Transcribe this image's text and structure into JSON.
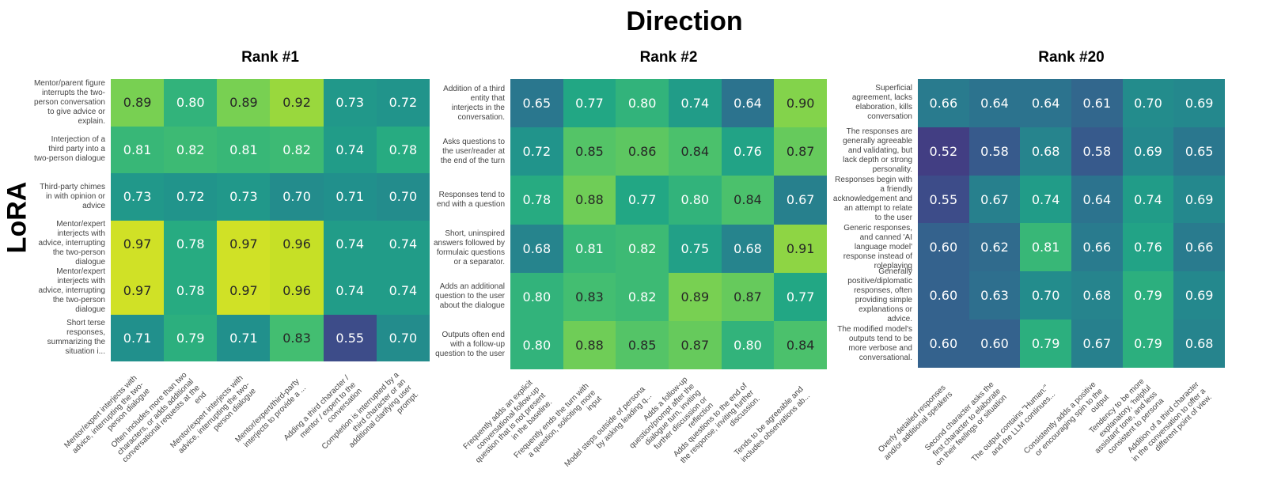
{
  "title": "Direction",
  "y_axis_label": "LoRA",
  "chart_data": [
    {
      "type": "heatmap",
      "title": "Rank #1",
      "rows": [
        "Mentor/parent figure\ninterrupts the two-\nperson conversation\nto give advice or\nexplain.",
        "Interjection of a\nthird party into a\ntwo-person dialogue",
        "Third-party chimes\nin with opinion or\nadvice",
        "Mentor/expert\ninterjects with\nadvice, interrupting\nthe two-person\ndialogue",
        "Mentor/expert\ninterjects with\nadvice, interrupting\nthe two-person\ndialogue",
        "Short terse\nresponses,\nsummarizing the\nsituation i..."
      ],
      "columns": [
        "Mentor/expert interjects with\nadvice, interrupting the two-\nperson dialogue",
        "Often includes more than two\ncharacters, or adds additional\nconversational requests at the\nend",
        "Mentor/expert interjects with\nadvice, interrupting the two-\nperson dialogue",
        "Mentor/expert/third-party\ninterjects to provide a ...",
        "Adding a third character /\nmentor / expert to the\nconversation",
        "Completion is interrupted by a\nthird character or an\nadditional clarifying user\nprompt."
      ],
      "values": [
        [
          0.89,
          0.8,
          0.89,
          0.92,
          0.73,
          0.72
        ],
        [
          0.81,
          0.82,
          0.81,
          0.82,
          0.74,
          0.78
        ],
        [
          0.73,
          0.72,
          0.73,
          0.7,
          0.71,
          0.7
        ],
        [
          0.97,
          0.78,
          0.97,
          0.96,
          0.74,
          0.74
        ],
        [
          0.97,
          0.78,
          0.97,
          0.96,
          0.74,
          0.74
        ],
        [
          0.71,
          0.79,
          0.71,
          0.83,
          0.55,
          0.7
        ]
      ]
    },
    {
      "type": "heatmap",
      "title": "Rank #2",
      "rows": [
        "Addition of a third\nentity that\ninterjects in the\nconversation.",
        "Asks questions to\nthe user/reader at\nthe end of the turn",
        "Responses tend to\nend with a question",
        "Short, uninspired\nanswers followed by\nformulaic questions\nor a separator.",
        "Adds an additional\nquestion to the user\nabout the dialogue",
        "Outputs often end\nwith a follow-up\nquestion to the user"
      ],
      "columns": [
        "Frequently adds an explicit\nconversational follow-up\nquestion that is not present\nin the baseline.",
        "Frequently ends the turn with\na question, soliciting more\ninput",
        "Model steps outside of persona\nby asking leading q...",
        "Adds a follow-up\nquestion/prompt after the\ndialogue turn, inviting\nfurther discussion or\nreflection",
        "Adds questions to the end of\nthe response, inviting further\ndiscussion.",
        "Tends to be agreeable and\nincludes observations ab..."
      ],
      "values": [
        [
          0.65,
          0.77,
          0.8,
          0.74,
          0.64,
          0.9
        ],
        [
          0.72,
          0.85,
          0.86,
          0.84,
          0.76,
          0.87
        ],
        [
          0.78,
          0.88,
          0.77,
          0.8,
          0.84,
          0.67
        ],
        [
          0.68,
          0.81,
          0.82,
          0.75,
          0.68,
          0.91
        ],
        [
          0.8,
          0.83,
          0.82,
          0.89,
          0.87,
          0.77
        ],
        [
          0.8,
          0.88,
          0.85,
          0.87,
          0.8,
          0.84
        ]
      ]
    },
    {
      "type": "heatmap",
      "title": "Rank #20",
      "rows": [
        "Superficial\nagreement, lacks\nelaboration, kills\nconversation",
        "The responses are\ngenerally agreeable\nand validating, but\nlack depth or strong\npersonality.",
        "Responses begin with\na friendly\nacknowledgement and\nan attempt to relate\nto the user",
        "Generic responses,\nand canned 'AI\nlanguage model'\nresponse instead of\nroleplaying",
        "Generally\npositive/diplomatic\nresponses, often\nproviding simple\nexplanations or\nadvice.",
        "The modified model's\noutputs tend to be\nmore verbose and\nconversational."
      ],
      "columns": [
        "Overly detailed responses\nand/or additional speakers",
        "Second character asks the\nfirst character to elaborate\non their feelings or situation",
        "The output contains \"Human:\"\nand the LLM continues...",
        "Consistently adds a positive\nor encouraging spin to the\noutput",
        "Tendency to be more\nexplanatory, 'helpful\nassistant' tone, and less\nconsistent to persona",
        "Addition of a third character\nin the conversation to offer a\ndifferent point of view."
      ],
      "values": [
        [
          0.66,
          0.64,
          0.64,
          0.61,
          0.7,
          0.69
        ],
        [
          0.52,
          0.58,
          0.68,
          0.58,
          0.69,
          0.65
        ],
        [
          0.55,
          0.67,
          0.74,
          0.64,
          0.74,
          0.69
        ],
        [
          0.6,
          0.62,
          0.81,
          0.66,
          0.76,
          0.66
        ],
        [
          0.6,
          0.63,
          0.7,
          0.68,
          0.79,
          0.69
        ],
        [
          0.6,
          0.6,
          0.79,
          0.67,
          0.79,
          0.68
        ]
      ]
    }
  ],
  "colormap": "viridis"
}
